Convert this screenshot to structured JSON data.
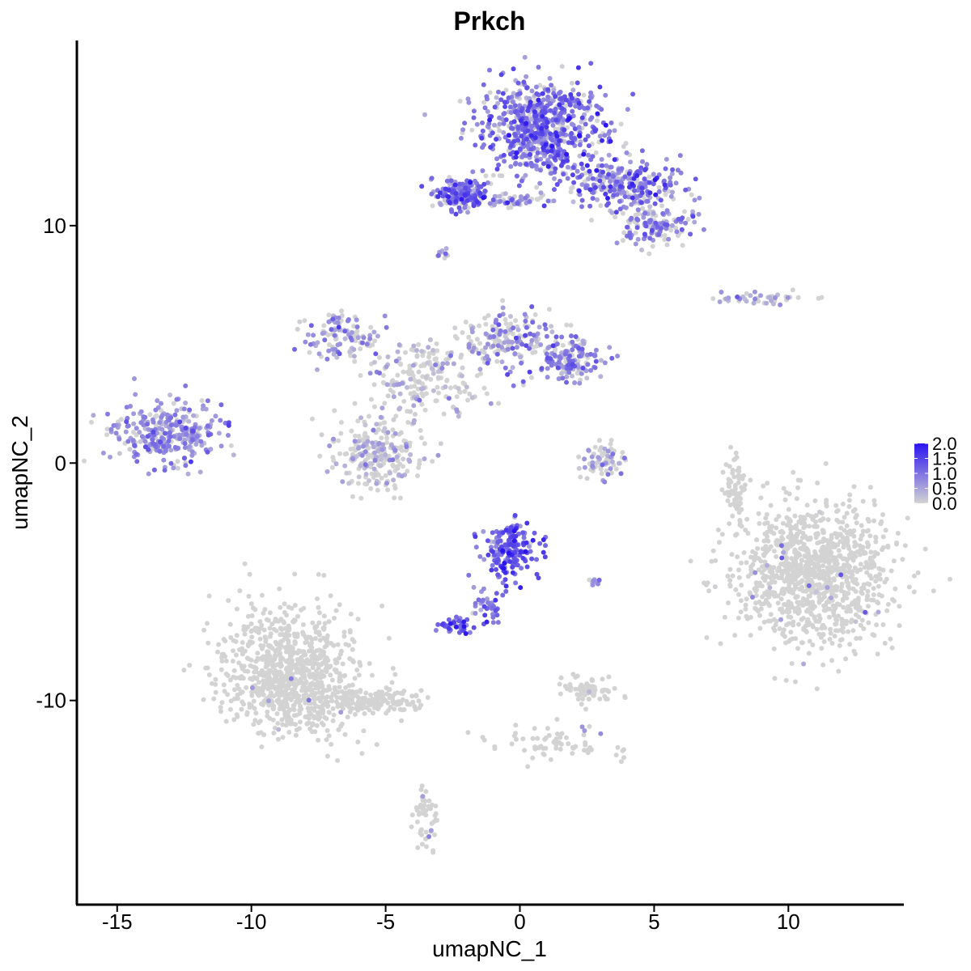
{
  "chart_data": {
    "type": "scatter",
    "title": "Prkch",
    "xlabel": "umapNC_1",
    "ylabel": "umapNC_2",
    "xlim": [
      -16.5,
      14.3
    ],
    "ylim": [
      -18.6,
      17.8
    ],
    "x_ticks": [
      -15,
      -10,
      -5,
      0,
      5,
      10
    ],
    "y_ticks": [
      -10,
      0,
      10
    ],
    "x_tick_labels": [
      "-15",
      "-10",
      "-5",
      "0",
      "5",
      "10"
    ],
    "y_tick_labels": [
      "-10",
      "0",
      "10"
    ],
    "grid": false,
    "color_scale": {
      "low_color": "#d3d3d3",
      "high_color": "#2b14f0",
      "min": 0.0,
      "max": 2.0,
      "breaks": [
        0.0,
        0.5,
        1.0,
        1.5,
        2.0
      ],
      "break_labels": [
        "0.0",
        "0.5",
        "1.0",
        "1.5",
        "2.0"
      ],
      "legend_position": "right"
    },
    "clusters": [
      {
        "id": "top-body",
        "center": [
          0.9,
          14.2
        ],
        "spread": [
          1.1,
          1.0
        ],
        "count": 700,
        "expr_mean": 0.95,
        "expr_sd": 0.45,
        "expr_frac": 0.85
      },
      {
        "id": "top-right-arm",
        "center": [
          3.9,
          11.7
        ],
        "spread": [
          1.1,
          0.55
        ],
        "count": 260,
        "expr_mean": 0.9,
        "expr_sd": 0.45,
        "expr_frac": 0.8
      },
      {
        "id": "top-right-lower",
        "center": [
          5.1,
          10.0
        ],
        "spread": [
          0.7,
          0.4
        ],
        "count": 130,
        "expr_mean": 0.7,
        "expr_sd": 0.4,
        "expr_frac": 0.65
      },
      {
        "id": "top-left-arm",
        "center": [
          -2.2,
          11.3
        ],
        "spread": [
          0.55,
          0.35
        ],
        "count": 180,
        "expr_mean": 1.05,
        "expr_sd": 0.45,
        "expr_frac": 0.85
      },
      {
        "id": "top-bridge",
        "center": [
          -0.3,
          11.1
        ],
        "spread": [
          1.1,
          0.15
        ],
        "count": 70,
        "expr_mean": 0.75,
        "expr_sd": 0.4,
        "expr_frac": 0.7
      },
      {
        "id": "top-small",
        "center": [
          -2.8,
          8.8
        ],
        "spread": [
          0.15,
          0.15
        ],
        "count": 10,
        "expr_mean": 0.5,
        "expr_sd": 0.3,
        "expr_frac": 0.5
      },
      {
        "id": "right-small-strip",
        "center": [
          8.8,
          6.9
        ],
        "spread": [
          0.75,
          0.15
        ],
        "count": 45,
        "expr_mean": 0.6,
        "expr_sd": 0.35,
        "expr_frac": 0.55
      },
      {
        "id": "left-cluster",
        "center": [
          -13.2,
          1.2
        ],
        "spread": [
          1.0,
          0.65
        ],
        "count": 320,
        "expr_mean": 0.7,
        "expr_sd": 0.35,
        "expr_frac": 0.82
      },
      {
        "id": "mid-upper-left-arm",
        "center": [
          -6.7,
          5.3
        ],
        "spread": [
          0.7,
          0.45
        ],
        "count": 110,
        "expr_mean": 0.6,
        "expr_sd": 0.35,
        "expr_frac": 0.65
      },
      {
        "id": "mid-upper-right",
        "center": [
          -0.5,
          5.1
        ],
        "spread": [
          0.8,
          0.6
        ],
        "count": 170,
        "expr_mean": 0.6,
        "expr_sd": 0.35,
        "expr_frac": 0.6
      },
      {
        "id": "mid-right-arm",
        "center": [
          1.8,
          4.4
        ],
        "spread": [
          0.7,
          0.45
        ],
        "count": 150,
        "expr_mean": 0.8,
        "expr_sd": 0.4,
        "expr_frac": 0.75
      },
      {
        "id": "mid-center",
        "center": [
          -3.5,
          3.5
        ],
        "spread": [
          1.0,
          0.8
        ],
        "count": 190,
        "expr_mean": 0.35,
        "expr_sd": 0.3,
        "expr_frac": 0.35
      },
      {
        "id": "mid-lower-blob",
        "center": [
          -5.3,
          0.4
        ],
        "spread": [
          0.85,
          0.75
        ],
        "count": 260,
        "expr_mean": 0.35,
        "expr_sd": 0.3,
        "expr_frac": 0.45
      },
      {
        "id": "center-small",
        "center": [
          3.1,
          0.1
        ],
        "spread": [
          0.45,
          0.45
        ],
        "count": 70,
        "expr_mean": 0.45,
        "expr_sd": 0.35,
        "expr_frac": 0.4
      },
      {
        "id": "center-expr-head",
        "center": [
          -0.3,
          -3.7
        ],
        "spread": [
          0.5,
          0.55
        ],
        "count": 190,
        "expr_mean": 1.25,
        "expr_sd": 0.4,
        "expr_frac": 0.95
      },
      {
        "id": "center-expr-stalk",
        "center": [
          -1.2,
          -5.8
        ],
        "spread": [
          0.3,
          0.45
        ],
        "count": 40,
        "expr_mean": 1.0,
        "expr_sd": 0.4,
        "expr_frac": 0.9
      },
      {
        "id": "center-expr-foot",
        "center": [
          -2.4,
          -6.9
        ],
        "spread": [
          0.3,
          0.18
        ],
        "count": 45,
        "expr_mean": 1.1,
        "expr_sd": 0.4,
        "expr_frac": 0.9
      },
      {
        "id": "center-small-2",
        "center": [
          2.8,
          -5.0
        ],
        "spread": [
          0.2,
          0.06
        ],
        "count": 12,
        "expr_mean": 0.7,
        "expr_sd": 0.3,
        "expr_frac": 0.7
      },
      {
        "id": "right-big",
        "center": [
          11.0,
          -4.6
        ],
        "spread": [
          1.45,
          1.5
        ],
        "count": 1100,
        "expr_mean": 0.6,
        "expr_sd": 0.4,
        "expr_frac": 0.012
      },
      {
        "id": "right-stalk",
        "center": [
          8.0,
          -1.0
        ],
        "spread": [
          0.18,
          0.8
        ],
        "count": 60,
        "expr_mean": 0.5,
        "expr_sd": 0.3,
        "expr_frac": 0.0
      },
      {
        "id": "lower-left-big",
        "center": [
          -8.6,
          -8.8
        ],
        "spread": [
          1.2,
          1.3
        ],
        "count": 900,
        "expr_mean": 0.6,
        "expr_sd": 0.3,
        "expr_frac": 0.005
      },
      {
        "id": "lower-left-tail",
        "center": [
          -5.6,
          -10.0
        ],
        "spread": [
          1.0,
          0.3
        ],
        "count": 160,
        "expr_mean": 0.6,
        "expr_sd": 0.3,
        "expr_frac": 0.005
      },
      {
        "id": "lower-left-stem",
        "center": [
          -3.5,
          -14.9
        ],
        "spread": [
          0.25,
          0.6
        ],
        "count": 50,
        "expr_mean": 0.6,
        "expr_sd": 0.3,
        "expr_frac": 0.05
      },
      {
        "id": "lower-center-small",
        "center": [
          2.5,
          -9.5
        ],
        "spread": [
          0.5,
          0.3
        ],
        "count": 70,
        "expr_mean": 0.6,
        "expr_sd": 0.3,
        "expr_frac": 0.03
      },
      {
        "id": "lower-center-stream",
        "center": [
          1.5,
          -11.8
        ],
        "spread": [
          1.3,
          0.4
        ],
        "count": 70,
        "expr_mean": 0.6,
        "expr_sd": 0.3,
        "expr_frac": 0.03
      }
    ]
  }
}
